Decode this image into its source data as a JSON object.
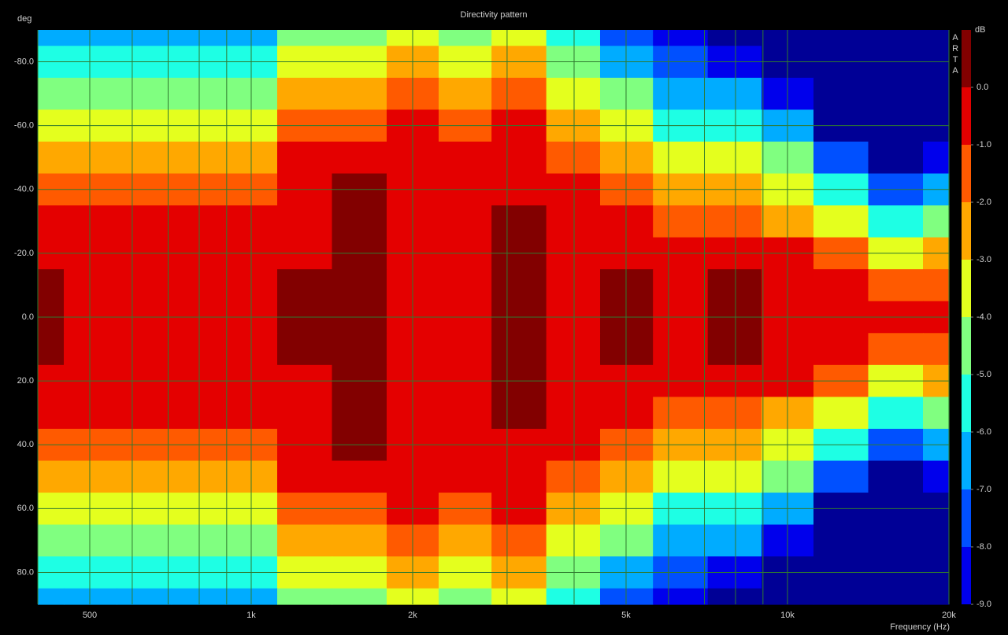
{
  "chart_data": {
    "type": "contour",
    "title": "Directivity pattern",
    "xlabel": "Frequency (Hz)",
    "ylabel": "deg",
    "watermark": "ARTA",
    "xscale": "log",
    "x": [
      400,
      500,
      630,
      800,
      1000,
      1250,
      1600,
      2000,
      2500,
      3150,
      4000,
      5000,
      6300,
      8000,
      10000,
      12500,
      16000,
      20000
    ],
    "y": [
      -90,
      -80,
      -70,
      -60,
      -50,
      -40,
      -30,
      -20,
      -10,
      0,
      10,
      20,
      30,
      40,
      50,
      60,
      70,
      80,
      90
    ],
    "z": [
      [
        -6.3,
        -6.3,
        -6.6,
        -6.8,
        -6.3,
        -4.6,
        -4.2,
        -3.5,
        -4.1,
        -3.2,
        -5.6,
        -7.5,
        -8.5,
        -9.5,
        -9.8,
        -9.8,
        -9.8,
        -9.8
      ],
      [
        -5.6,
        -5.5,
        -5.6,
        -5.8,
        -5.4,
        -3.8,
        -3.2,
        -2.6,
        -3.1,
        -2.4,
        -4.6,
        -6.2,
        -7.8,
        -8.2,
        -9.5,
        -9.8,
        -9.8,
        -9.8
      ],
      [
        -4.5,
        -4.3,
        -4.6,
        -4.7,
        -4.4,
        -2.8,
        -2.2,
        -1.8,
        -2.2,
        -1.6,
        -3.5,
        -4.8,
        -6.8,
        -6.6,
        -8.2,
        -9.7,
        -9.8,
        -9.8
      ],
      [
        -3.4,
        -3.2,
        -3.4,
        -3.5,
        -3.3,
        -1.8,
        -1.2,
        -0.95,
        -1.4,
        -1.0,
        -2.6,
        -3.8,
        -5.3,
        -5.2,
        -6.5,
        -9.2,
        -9.8,
        -9.5
      ],
      [
        -2.6,
        -2.2,
        -2.3,
        -2.5,
        -2.2,
        -0.95,
        -0.1,
        -0.8,
        -0.9,
        -0.8,
        -1.7,
        -2.8,
        -4.0,
        -3.8,
        -5.0,
        -7.4,
        -9.5,
        -8.5
      ],
      [
        -1.8,
        -1.1,
        -1.5,
        -1.6,
        -1.4,
        -0.6,
        0.2,
        -0.6,
        -0.8,
        -0.5,
        -0.95,
        -1.9,
        -2.5,
        -2.4,
        -3.8,
        -5.5,
        -7.8,
        -6.5
      ],
      [
        -0.9,
        -0.9,
        -0.9,
        -0.9,
        -0.8,
        -0.4,
        0.3,
        -0.5,
        -0.7,
        0.1,
        -0.8,
        -0.95,
        -1.4,
        -1.2,
        -2.2,
        -3.4,
        -5.5,
        -4.3
      ],
      [
        -0.6,
        -0.6,
        -0.5,
        -0.5,
        -0.4,
        -0.2,
        0.4,
        -0.4,
        -0.6,
        0.3,
        -0.6,
        -0.5,
        -0.8,
        -0.5,
        -0.9,
        -1.8,
        -3.3,
        -2.6
      ],
      [
        0.2,
        -0.4,
        -0.4,
        -0.4,
        -0.3,
        0.1,
        0.4,
        -0.3,
        -0.5,
        0.2,
        -0.5,
        0.1,
        -0.5,
        0.2,
        -0.6,
        -0.95,
        -1.3,
        -1.2
      ],
      [
        0.3,
        -0.3,
        -0.4,
        -0.4,
        -0.3,
        0.1,
        0.4,
        -0.3,
        -0.5,
        0.1,
        -0.5,
        0.1,
        -0.4,
        0.1,
        -0.5,
        -0.6,
        -0.7,
        -0.8
      ],
      [
        0.2,
        -0.4,
        -0.4,
        -0.4,
        -0.3,
        0.1,
        0.4,
        -0.3,
        -0.5,
        0.2,
        -0.5,
        0.1,
        -0.5,
        0.2,
        -0.6,
        -0.95,
        -1.3,
        -1.2
      ],
      [
        -0.6,
        -0.6,
        -0.5,
        -0.5,
        -0.4,
        -0.2,
        0.4,
        -0.4,
        -0.6,
        0.3,
        -0.6,
        -0.5,
        -0.8,
        -0.5,
        -0.9,
        -1.8,
        -3.3,
        -2.6
      ],
      [
        -0.9,
        -0.9,
        -0.9,
        -0.9,
        -0.8,
        -0.4,
        0.3,
        -0.5,
        -0.7,
        0.1,
        -0.8,
        -0.95,
        -1.4,
        -1.2,
        -2.2,
        -3.4,
        -5.5,
        -4.3
      ],
      [
        -1.8,
        -1.1,
        -1.5,
        -1.6,
        -1.4,
        -0.6,
        0.2,
        -0.6,
        -0.8,
        -0.5,
        -0.95,
        -1.9,
        -2.5,
        -2.4,
        -3.8,
        -5.5,
        -7.8,
        -6.5
      ],
      [
        -2.6,
        -2.2,
        -2.3,
        -2.5,
        -2.2,
        -0.95,
        -0.1,
        -0.8,
        -0.9,
        -0.8,
        -1.7,
        -2.8,
        -4.0,
        -3.8,
        -5.0,
        -7.4,
        -9.5,
        -8.5
      ],
      [
        -3.4,
        -3.2,
        -3.4,
        -3.5,
        -3.3,
        -1.8,
        -1.2,
        -0.95,
        -1.4,
        -1.0,
        -2.6,
        -3.8,
        -5.3,
        -5.2,
        -6.5,
        -9.2,
        -9.8,
        -9.5
      ],
      [
        -4.5,
        -4.3,
        -4.6,
        -4.7,
        -4.4,
        -2.8,
        -2.2,
        -1.8,
        -2.2,
        -1.6,
        -3.5,
        -4.8,
        -6.8,
        -6.6,
        -8.2,
        -9.7,
        -9.8,
        -9.8
      ],
      [
        -5.6,
        -5.5,
        -5.6,
        -5.8,
        -5.4,
        -3.8,
        -3.2,
        -2.6,
        -3.1,
        -2.4,
        -4.6,
        -6.2,
        -7.8,
        -8.2,
        -9.5,
        -9.8,
        -9.8,
        -9.8
      ],
      [
        -6.3,
        -6.3,
        -6.6,
        -6.8,
        -6.3,
        -4.6,
        -4.2,
        -3.5,
        -4.1,
        -3.2,
        -5.6,
        -7.5,
        -8.5,
        -9.5,
        -9.8,
        -9.8,
        -9.8,
        -9.8
      ]
    ],
    "xlim": [
      400,
      20000
    ],
    "ylim": [
      -90,
      90
    ],
    "xticks": [
      {
        "value": 500,
        "label": "500"
      },
      {
        "value": 1000,
        "label": "1k"
      },
      {
        "value": 2000,
        "label": "2k"
      },
      {
        "value": 5000,
        "label": "5k"
      },
      {
        "value": 10000,
        "label": "10k"
      },
      {
        "value": 20000,
        "label": "20k"
      }
    ],
    "xgrid": [
      400,
      500,
      600,
      700,
      800,
      900,
      1000,
      2000,
      3000,
      4000,
      5000,
      6000,
      7000,
      8000,
      9000,
      10000,
      20000
    ],
    "yticks": [
      {
        "value": -80,
        "label": "-80.0"
      },
      {
        "value": -60,
        "label": "-60.0"
      },
      {
        "value": -40,
        "label": "-40.0"
      },
      {
        "value": -20,
        "label": "-20.0"
      },
      {
        "value": 0,
        "label": "0.0"
      },
      {
        "value": 20,
        "label": "20.0"
      },
      {
        "value": 40,
        "label": "40.0"
      },
      {
        "value": 60,
        "label": "60.0"
      },
      {
        "value": 80,
        "label": "80.0"
      }
    ],
    "grid": true,
    "colorbar": {
      "label": "dB",
      "zlim": [
        1,
        -9
      ],
      "ticks": [
        {
          "value": 0,
          "label": "0.0"
        },
        {
          "value": -1,
          "label": "-1.0"
        },
        {
          "value": -2,
          "label": "-2.0"
        },
        {
          "value": -3,
          "label": "-3.0"
        },
        {
          "value": -4,
          "label": "-4.0"
        },
        {
          "value": -5,
          "label": "-5.0"
        },
        {
          "value": -6,
          "label": "-6.0"
        },
        {
          "value": -7,
          "label": "-7.0"
        },
        {
          "value": -8,
          "label": "-8.0"
        },
        {
          "value": -9,
          "label": "-9.0"
        }
      ],
      "colors": [
        "#820000",
        "#e40000",
        "#ff5a00",
        "#ffa800",
        "#e4ff1e",
        "#80ff80",
        "#1effe4",
        "#00acff",
        "#0050ff",
        "#0000ec"
      ],
      "under_color": "#000096"
    }
  }
}
